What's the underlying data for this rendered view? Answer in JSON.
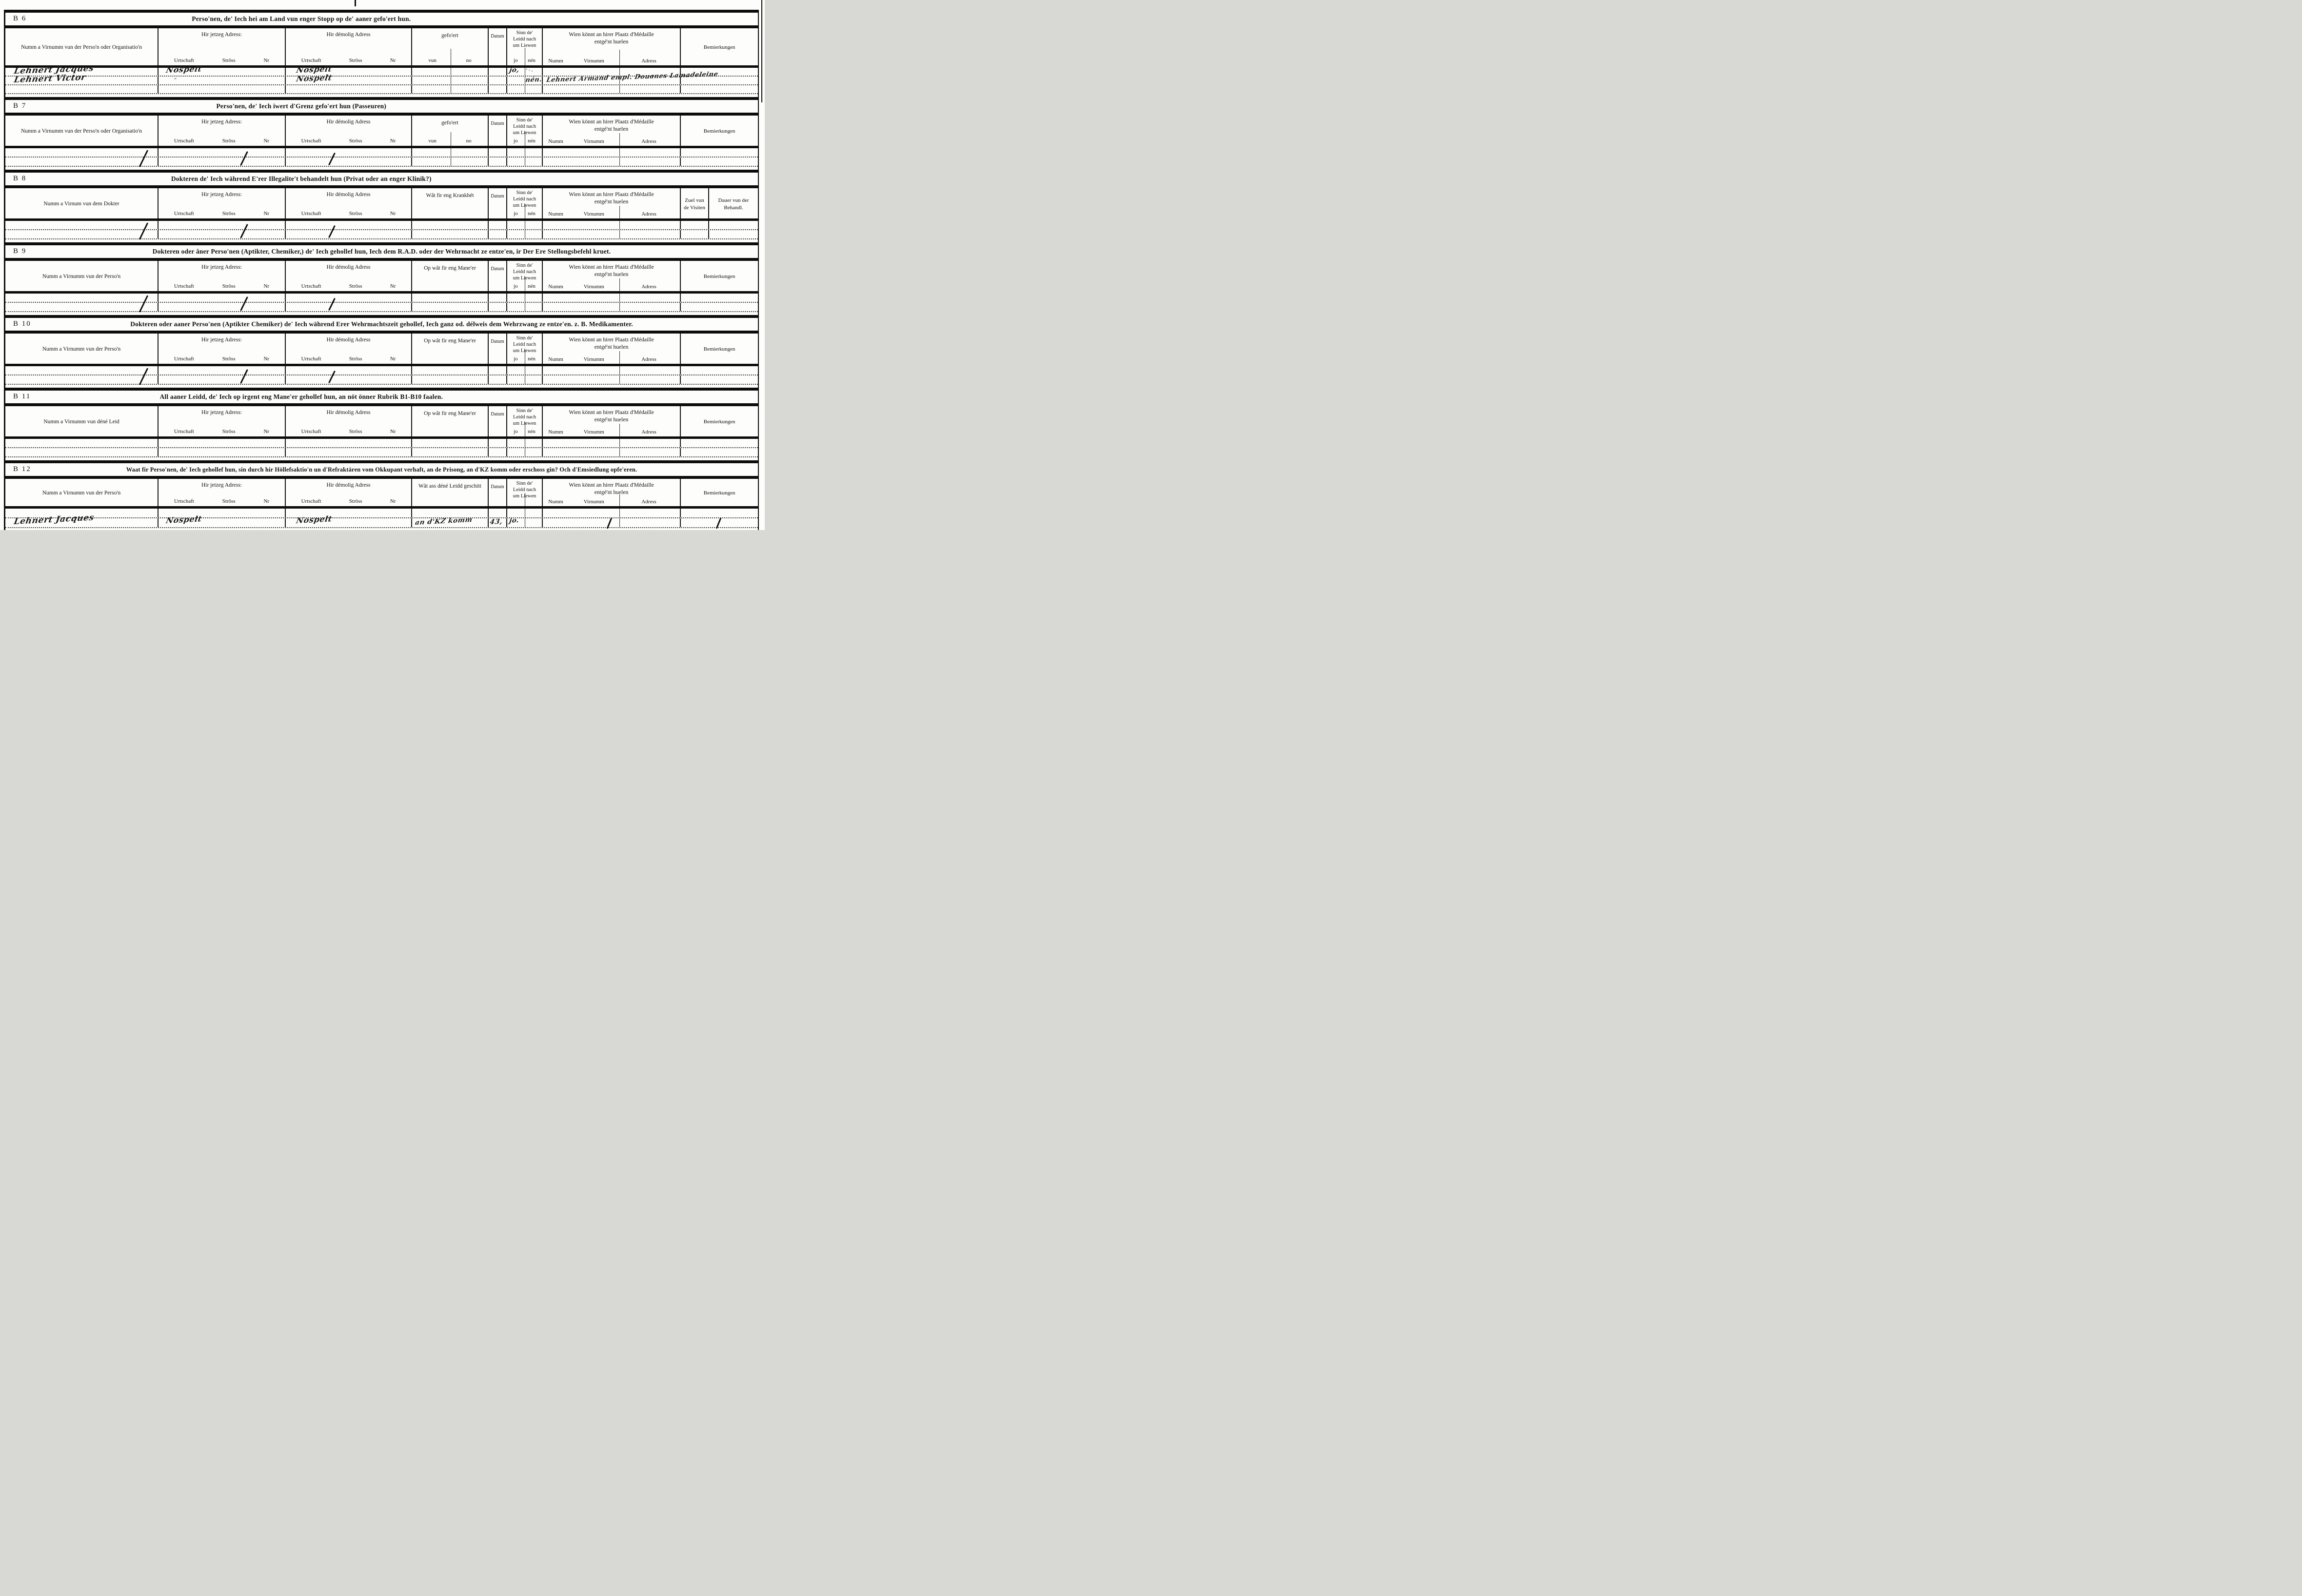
{
  "doc": {
    "page": {
      "background": "#fdfdfb",
      "ink": "#111111"
    },
    "shared": {
      "current_address": "Hir jetzeg Adress:",
      "former_address": "Hir démolig Adress",
      "address_sub": [
        "Urtschaft",
        "Strôss",
        "Nr"
      ],
      "date": "Datum",
      "alive": [
        "Sinn de'",
        "Leidd nach",
        "um Liewen"
      ],
      "alive_sub": [
        "jo",
        "nén"
      ],
      "medal": [
        "Wien könnt an hirer Plaatz d'Médaille",
        "entgé'nt huelen"
      ],
      "medal_sub": [
        "Numm",
        "Virnumm",
        "Adress"
      ]
    },
    "sections": [
      {
        "id": "B 6",
        "title": "Perso'nen, de' Iech hei am Land vun enger Stopp op de' aaner gefo'ert hun.",
        "name_col": "Numm a Virnumm vun der Perso'n oder Organisatio'n",
        "mid": "gefo'ert",
        "mid_sub": [
          "vun",
          "no"
        ],
        "tail": [
          "Bemierkungen"
        ],
        "rows": 3,
        "short_title": true,
        "entries": [
          {
            "name": "Lehnert Jacques",
            "jetzeg": "Nospelt",
            "demolig": "Nospelt",
            "jo": "jo,",
            "scribble": "···"
          },
          {
            "name": "Lehnert Victor",
            "jetzeg_ditto": "″",
            "demolig": "Nospelt",
            "nen": "nén.",
            "medal": "Lehnert Armand empl. Douanes Lamadeleine"
          },
          {}
        ]
      },
      {
        "id": "B 7",
        "title": "Perso'nen, de' Iech iwert d'Grenz gefo'ert hun (Passeuren)",
        "name_col": "Numm a Virnumm vun der Perso'n oder Organisatio'n",
        "mid": "gefo'ert",
        "mid_sub": [
          "vun",
          "no"
        ],
        "tail": [
          "Bemierkungen"
        ],
        "rows": 2,
        "short_title": true,
        "slashes": true,
        "entries": [
          {},
          {}
        ]
      },
      {
        "id": "B 8",
        "title": "Dokteren de' Iech während E'rer Illegalite't behandelt hun (Privat oder an enger Klinik?)",
        "name_col": "Numm a Virnum vun dem Dokter",
        "mid": "Wât fir eng Krankhét",
        "tail": [
          "Zuel vun de Visiten",
          "Dauer vun der Behandl."
        ],
        "rows": 2,
        "short_title": true,
        "slashes": true,
        "entries": [
          {},
          {}
        ]
      },
      {
        "id": "B 9",
        "title": "Dokteren oder âner Perso'nen (Aptikter, Chemiker,) de' Iech gehollef hun, Iech dem R.A.D. oder der Wehrmacht ze entze'en, ir Der Ere Stellongsbefehl kruet.",
        "name_col": "Numm a Virnumm vun der Perso'n",
        "mid": "Op wât fir eng Mane'er",
        "tail": [
          "Bemierkungen"
        ],
        "rows": 2,
        "slashes": true,
        "entries": [
          {},
          {}
        ]
      },
      {
        "id": "B 10",
        "title": "Dokteren oder aaner Perso'nen (Aptikter Chemiker) de' Iech während Erer Wehrmachtszeit gehollef, Iech ganz od. délweis dem Wehrzwang ze entze'en. z. B. Medikamenter.",
        "name_col": "Numm a Virnumm vun der Perso'n",
        "mid": "Op wât fir eng Mane'er",
        "tail": [
          "Bemierkungen"
        ],
        "rows": 2,
        "slashes": true,
        "entries": [
          {},
          {}
        ]
      },
      {
        "id": "B 11",
        "title": "All aaner Leidd, de' Iech op irgent eng Mane'er gehollef hun, an nöt önner Rubrik B1-B10 faalen.",
        "name_col": "Numm a Virnumm vun déné Leid",
        "mid": "Op wât fir eng Mane'er",
        "tail": [
          "Bemierkungen"
        ],
        "rows": 2,
        "short_title": true,
        "entries": [
          {},
          {}
        ]
      },
      {
        "id": "B 12",
        "title": "Waat fir Perso'nen, de' Iech gehollef hun, sin durch hir Höllefsaktio'n un d'Refraktären vom Okkupant verhaft, an de Prisong, an d'KZ komm oder erschoss gin? Och d'Emsiedlung opfe'eren.",
        "name_col": "Numm a Virnumm vun der Perso'n",
        "mid": "Wât ass déné Leidd geschitt",
        "no_alive_sub": true,
        "tail": [
          "Bemierkungen"
        ],
        "rows": 2,
        "entries": [
          {},
          {
            "name": "Lehnert Jacques",
            "jetzeg": "Nospelt",
            "demolig": "Nospelt",
            "mid": "an d'KZ komm",
            "datum": "43,",
            "jo": "jo.",
            "medal_slash": true,
            "remarks_slash": true
          }
        ]
      }
    ]
  }
}
